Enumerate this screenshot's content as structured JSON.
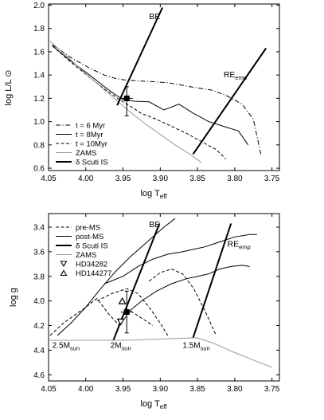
{
  "chart_data": [
    {
      "type": "line",
      "xlabel": "log T",
      "xlabel_sub": "eff",
      "ylabel": "log L/L ⊙",
      "xlim": [
        4.05,
        3.74
      ],
      "ylim": [
        0.58,
        2.01
      ],
      "x_ticks": [
        "4.05",
        "4.00",
        "3.95",
        "3.90",
        "3.85",
        "3.80",
        "3.75"
      ],
      "x_tick_values": [
        4.05,
        4.0,
        3.95,
        3.9,
        3.85,
        3.8,
        3.75
      ],
      "y_ticks": [
        "0.6",
        "0.8",
        "1.0",
        "1.2",
        "1.4",
        "1.6",
        "1.8",
        "2.0"
      ],
      "y_tick_values": [
        0.6,
        0.8,
        1.0,
        1.2,
        1.4,
        1.6,
        1.8,
        2.0
      ],
      "annotations": [
        {
          "text": "BE",
          "sub": "",
          "x": 3.915,
          "y": 1.88
        },
        {
          "text": "RE",
          "sub": "emp",
          "x": 3.815,
          "y": 1.38
        }
      ],
      "legend": {
        "position": "bottom-left",
        "entries": [
          "t = 6 Myr",
          "t = 8Myr",
          "t = 10Myr",
          "ZAMS",
          "δ Scuti IS"
        ]
      },
      "series": [
        {
          "name": "t = 6 Myr",
          "style": "dashdot",
          "color": "#000000",
          "width": 1,
          "x": [
            4.045,
            4.02,
            3.995,
            3.975,
            3.96,
            3.945,
            3.93,
            3.915,
            3.89,
            3.86,
            3.83,
            3.81,
            3.79,
            3.775,
            3.765
          ],
          "y": [
            1.66,
            1.55,
            1.46,
            1.4,
            1.37,
            1.355,
            1.35,
            1.345,
            1.335,
            1.3,
            1.27,
            1.22,
            1.15,
            1.02,
            0.72
          ]
        },
        {
          "name": "t = 8Myr",
          "style": "solid",
          "color": "#000000",
          "width": 1,
          "x": [
            4.045,
            4.02,
            3.995,
            3.975,
            3.96,
            3.95,
            3.935,
            3.915,
            3.895,
            3.875,
            3.855,
            3.835,
            3.815,
            3.795,
            3.782
          ],
          "y": [
            1.65,
            1.52,
            1.4,
            1.3,
            1.23,
            1.19,
            1.175,
            1.17,
            1.1,
            1.15,
            1.07,
            1.0,
            0.96,
            0.92,
            0.8
          ]
        },
        {
          "name": "t = 10Myr",
          "style": "dashed",
          "color": "#000000",
          "width": 1,
          "x": [
            4.045,
            4.02,
            3.995,
            3.975,
            3.955,
            3.94,
            3.925,
            3.905,
            3.885,
            3.865,
            3.845,
            3.825,
            3.812
          ],
          "y": [
            1.65,
            1.51,
            1.38,
            1.28,
            1.19,
            1.13,
            1.07,
            1.02,
            0.96,
            0.9,
            0.83,
            0.76,
            0.68
          ]
        },
        {
          "name": "ZAMS",
          "style": "solid",
          "color": "#999999",
          "width": 1,
          "x": [
            4.048,
            4.02,
            4.0,
            3.98,
            3.96,
            3.94,
            3.92,
            3.9,
            3.88,
            3.86,
            3.845
          ],
          "y": [
            1.69,
            1.53,
            1.41,
            1.3,
            1.19,
            1.08,
            0.98,
            0.89,
            0.8,
            0.72,
            0.65
          ]
        },
        {
          "name": "δ Scuti IS",
          "style": "solid",
          "color": "#000000",
          "width": 2,
          "x": [
            3.958,
            3.897
          ],
          "y": [
            1.14,
            1.98
          ]
        },
        {
          "name": "",
          "style": "solid",
          "color": "#000000",
          "width": 2,
          "x": [
            3.856,
            3.758
          ],
          "y": [
            0.72,
            1.63
          ]
        }
      ],
      "points": [
        {
          "name": "star",
          "marker": "square",
          "x": 3.945,
          "y": 1.2,
          "x_err": 0.008,
          "y_err_low": 0.15,
          "y_err_high": 0.1
        }
      ]
    },
    {
      "type": "line",
      "xlabel": "log T",
      "xlabel_sub": "eff",
      "ylabel": "log g",
      "xlim": [
        4.05,
        3.74
      ],
      "ylim": [
        4.65,
        3.29
      ],
      "x_ticks": [
        "4.05",
        "4.00",
        "3.95",
        "3.90",
        "3.85",
        "3.80",
        "3.75"
      ],
      "x_tick_values": [
        4.05,
        4.0,
        3.95,
        3.9,
        3.85,
        3.8,
        3.75
      ],
      "y_ticks": [
        "3.4",
        "3.6",
        "3.8",
        "4.0",
        "4.2",
        "4.4",
        "4.6"
      ],
      "y_tick_values": [
        3.4,
        3.6,
        3.8,
        4.0,
        4.2,
        4.4,
        4.6
      ],
      "annotations": [
        {
          "text": "BE",
          "sub": "",
          "x": 3.915,
          "y": 3.4
        },
        {
          "text": "RE",
          "sub": "emp",
          "x": 3.81,
          "y": 3.56
        },
        {
          "text": "2.5M",
          "sub": "sun",
          "x": 4.045,
          "y": 4.38
        },
        {
          "text": "2M",
          "sub": "sun",
          "x": 3.967,
          "y": 4.38
        },
        {
          "text": "1.5M",
          "sub": "sun",
          "x": 3.87,
          "y": 4.38
        }
      ],
      "legend": {
        "position": "top-left",
        "entries": [
          "pre-MS",
          "post-MS",
          "δ Scuti IS",
          "ZAMS",
          "HD34282",
          "HD144277"
        ]
      },
      "series": [
        {
          "name": "pre-MS",
          "style": "dashed",
          "color": "#000000",
          "width": 1,
          "x": [
            4.048,
            4.03,
            4.0,
            3.985,
            3.97,
            3.955,
            3.94,
            3.925,
            3.91
          ],
          "y": [
            4.28,
            4.18,
            4.05,
            3.98,
            4.1,
            4.2,
            4.08,
            4.14,
            4.2
          ]
        },
        {
          "name": "",
          "style": "dashed",
          "color": "#000000",
          "width": 1,
          "x": [
            3.985,
            3.965,
            3.945,
            3.93,
            3.915,
            3.9,
            3.89
          ],
          "y": [
            4.0,
            3.94,
            3.9,
            3.94,
            4.05,
            4.18,
            4.28
          ]
        },
        {
          "name": "",
          "style": "dashed",
          "color": "#000000",
          "width": 1,
          "x": [
            3.915,
            3.9,
            3.885,
            3.87,
            3.855,
            3.84,
            3.825
          ],
          "y": [
            3.84,
            3.77,
            3.74,
            3.78,
            3.9,
            4.08,
            4.28
          ]
        },
        {
          "name": "post-MS",
          "style": "solid",
          "color": "#000000",
          "width": 1,
          "x": [
            4.038,
            4.02,
            4.0,
            3.98,
            3.96,
            3.94,
            3.925,
            3.91,
            3.895,
            3.88
          ],
          "y": [
            4.28,
            4.18,
            4.05,
            3.9,
            3.76,
            3.64,
            3.56,
            3.48,
            3.4,
            3.33
          ]
        },
        {
          "name": "",
          "style": "solid",
          "color": "#000000",
          "width": 1,
          "x": [
            3.975,
            3.95,
            3.93,
            3.91,
            3.89,
            3.87,
            3.855,
            3.84,
            3.82,
            3.8,
            3.78,
            3.77
          ],
          "y": [
            3.86,
            3.8,
            3.72,
            3.66,
            3.62,
            3.6,
            3.58,
            3.56,
            3.52,
            3.48,
            3.46,
            3.46
          ]
        },
        {
          "name": "",
          "style": "solid",
          "color": "#000000",
          "width": 1,
          "x": [
            3.945,
            3.925,
            3.905,
            3.885,
            3.865,
            3.85,
            3.835,
            3.82,
            3.805,
            3.79,
            3.78
          ],
          "y": [
            4.1,
            4.0,
            3.92,
            3.86,
            3.82,
            3.8,
            3.78,
            3.74,
            3.72,
            3.71,
            3.72
          ]
        },
        {
          "name": "δ Scuti IS",
          "style": "solid",
          "color": "#000000",
          "width": 2,
          "x": [
            3.963,
            3.901
          ],
          "y": [
            4.32,
            3.37
          ]
        },
        {
          "name": "",
          "style": "solid",
          "color": "#000000",
          "width": 2,
          "x": [
            3.856,
            3.805
          ],
          "y": [
            4.3,
            3.37
          ]
        },
        {
          "name": "ZAMS",
          "style": "solid",
          "color": "#999999",
          "width": 1,
          "x": [
            4.05,
            4.0,
            3.95,
            3.9,
            3.86,
            3.85,
            3.83,
            3.8,
            3.775,
            3.75
          ],
          "y": [
            4.32,
            4.32,
            4.32,
            4.31,
            4.3,
            4.3,
            4.34,
            4.42,
            4.48,
            4.54
          ]
        }
      ],
      "points": [
        {
          "name": "HD34282",
          "marker": "triangle-down",
          "x": 3.953,
          "y": 4.17
        },
        {
          "name": "HD144277",
          "marker": "triangle-up",
          "x": 3.951,
          "y": 4.0
        },
        {
          "name": "star",
          "marker": "square",
          "x": 3.945,
          "y": 4.09,
          "x_err": 0.008,
          "y_err_low": 0.17,
          "y_err_high": 0.17
        }
      ]
    }
  ]
}
